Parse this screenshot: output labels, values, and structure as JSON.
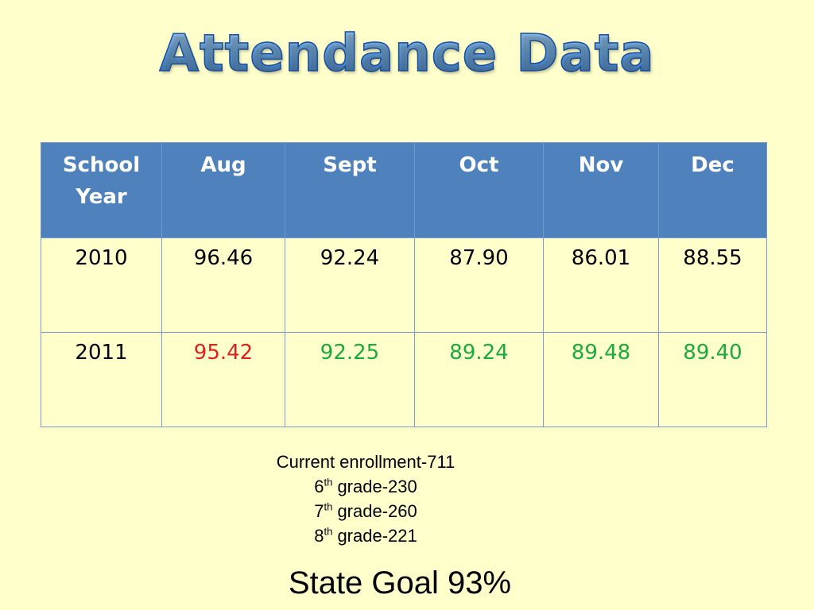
{
  "title": "Attendance Data",
  "table": {
    "headers": {
      "year_line1": "School",
      "year_line2": "Year",
      "aug": "Aug",
      "sept": "Sept",
      "oct": "Oct",
      "nov": "Nov",
      "dec": "Dec"
    },
    "rows": [
      {
        "year": "2010",
        "aug": "96.46",
        "sept": "92.24",
        "oct": "87.90",
        "nov": "86.01",
        "dec": "88.55"
      },
      {
        "year": "2011",
        "aug": "95.42",
        "sept": "92.25",
        "oct": "89.24",
        "nov": "89.48",
        "dec": "89.40"
      }
    ]
  },
  "colors": {
    "header_blue": "#4F81BD",
    "below_goal_red": "#E02020",
    "improved_green": "#1AAA3E",
    "background": "#FFFFCC"
  },
  "enrollment": {
    "current": "Current enrollment-711",
    "grade6_num": "6",
    "grade6_sup": "th",
    "grade6_rest": " grade-230",
    "grade7_num": "7",
    "grade7_sup": "th",
    "grade7_rest": " grade-260",
    "grade8_num": "8",
    "grade8_sup": "th",
    "grade8_rest": " grade-221"
  },
  "goal": "State Goal 93%"
}
